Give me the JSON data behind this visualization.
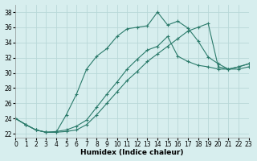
{
  "xlabel": "Humidex (Indice chaleur)",
  "background_color": "#d7eeee",
  "grid_color": "#b8d8d8",
  "line_color": "#2a7a6a",
  "xlim": [
    0,
    23
  ],
  "ylim": [
    21.5,
    39
  ],
  "yticks": [
    22,
    24,
    26,
    28,
    30,
    32,
    34,
    36,
    38
  ],
  "xticks": [
    0,
    1,
    2,
    3,
    4,
    5,
    6,
    7,
    8,
    9,
    10,
    11,
    12,
    13,
    14,
    15,
    16,
    17,
    18,
    19,
    20,
    21,
    22,
    23
  ],
  "series1": [
    24.0,
    23.2,
    22.5,
    22.2,
    22.2,
    24.5,
    27.2,
    30.5,
    32.2,
    33.2,
    34.8,
    35.8,
    36.0,
    36.2,
    38.0,
    36.3,
    36.8,
    35.9,
    34.2,
    32.1,
    31.2,
    30.5,
    30.8,
    31.2
  ],
  "series2": [
    24.0,
    23.2,
    22.5,
    22.2,
    22.3,
    22.5,
    23.0,
    23.8,
    25.5,
    27.2,
    28.8,
    30.5,
    31.8,
    33.0,
    33.5,
    34.8,
    32.2,
    31.5,
    31.0,
    30.8,
    30.5,
    30.5,
    30.8,
    31.2
  ],
  "series3": [
    24.0,
    23.2,
    22.5,
    22.2,
    22.2,
    22.3,
    22.5,
    23.2,
    24.5,
    26.0,
    27.5,
    29.0,
    30.2,
    31.5,
    32.5,
    33.5,
    34.5,
    35.5,
    36.0,
    36.5,
    30.8,
    30.5,
    30.5,
    30.8
  ],
  "marker": "+",
  "markersize": 3,
  "linewidth": 0.8
}
